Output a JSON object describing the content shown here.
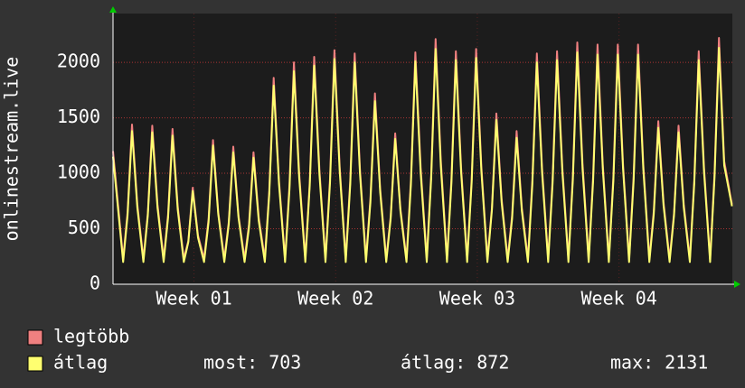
{
  "chart_data": {
    "type": "line",
    "ylabel": "onlinestream.live",
    "x": [
      0,
      0.5,
      0.72,
      0.94,
      1.2,
      1.5,
      1.72,
      1.94,
      2.2,
      2.5,
      2.72,
      2.94,
      3.2,
      3.5,
      3.72,
      3.94,
      4.2,
      4.5,
      4.72,
      4.94,
      5.2,
      5.5,
      5.72,
      5.94,
      6.2,
      6.5,
      6.72,
      6.94,
      7.2,
      7.5,
      7.72,
      7.94,
      8.2,
      8.5,
      8.72,
      8.94,
      9.2,
      9.5,
      9.72,
      9.94,
      10.2,
      10.5,
      10.72,
      10.94,
      11.2,
      11.5,
      11.72,
      11.94,
      12.2,
      12.5,
      12.72,
      12.94,
      13.2,
      13.5,
      13.72,
      13.94,
      14.2,
      14.5,
      14.72,
      14.94,
      15.2,
      15.5,
      15.72,
      15.94,
      16.2,
      16.5,
      16.72,
      16.94,
      17.2,
      17.5,
      17.72,
      17.94,
      18.2,
      18.5,
      18.72,
      18.94,
      19.2,
      19.5,
      19.72,
      19.94,
      20.2,
      20.5,
      20.72,
      20.94,
      21.2,
      21.5,
      21.72,
      21.94,
      22.2,
      22.5,
      22.72,
      22.94,
      23.2,
      23.5,
      23.72,
      23.94,
      24.2,
      24.5,
      24.72,
      24.94,
      25.2,
      25.5,
      25.72,
      25.94,
      26.2,
      26.5,
      26.72,
      26.94,
      27.2,
      27.5,
      27.72,
      27.94,
      28.2,
      28.5,
      28.72,
      28.94,
      29.2,
      29.5,
      29.72,
      29.94,
      30.2,
      30.58
    ],
    "series": [
      {
        "name": "legtöbb",
        "color": "#f08080",
        "values": [
          1200,
          230,
          650,
          1440,
          720,
          230,
          640,
          1430,
          720,
          230,
          630,
          1400,
          700,
          230,
          390,
          870,
          440,
          230,
          590,
          1300,
          650,
          230,
          560,
          1240,
          620,
          230,
          540,
          1190,
          600,
          230,
          840,
          1860,
          930,
          230,
          900,
          2000,
          1000,
          230,
          920,
          2050,
          1030,
          230,
          950,
          2110,
          1060,
          230,
          940,
          2080,
          1040,
          230,
          770,
          1720,
          860,
          230,
          610,
          1360,
          680,
          230,
          940,
          2090,
          1050,
          230,
          990,
          2210,
          1110,
          230,
          950,
          2100,
          1050,
          230,
          950,
          2120,
          1060,
          230,
          690,
          1540,
          770,
          230,
          620,
          1380,
          690,
          230,
          940,
          2080,
          1040,
          230,
          950,
          2100,
          1050,
          230,
          980,
          2180,
          1090,
          230,
          970,
          2160,
          1080,
          230,
          970,
          2160,
          1080,
          230,
          970,
          2160,
          1080,
          230,
          660,
          1470,
          740,
          230,
          640,
          1430,
          720,
          230,
          940,
          2100,
          1050,
          230,
          1000,
          2220,
          1110,
          720
        ]
      },
      {
        "name": "átlag",
        "color": "#ffff70",
        "values": [
          1150,
          200,
          620,
          1380,
          690,
          200,
          620,
          1370,
          690,
          200,
          600,
          1340,
          670,
          200,
          380,
          840,
          420,
          200,
          560,
          1250,
          630,
          200,
          540,
          1190,
          600,
          200,
          510,
          1140,
          570,
          200,
          810,
          1790,
          900,
          200,
          860,
          1920,
          960,
          200,
          890,
          1970,
          990,
          200,
          910,
          2030,
          1020,
          200,
          900,
          2000,
          1000,
          200,
          740,
          1650,
          830,
          200,
          590,
          1310,
          660,
          200,
          900,
          2010,
          1000,
          200,
          950,
          2120,
          1060,
          200,
          910,
          2020,
          1010,
          200,
          920,
          2040,
          1020,
          200,
          670,
          1480,
          740,
          200,
          590,
          1320,
          660,
          200,
          900,
          2000,
          1000,
          200,
          910,
          2020,
          1010,
          200,
          940,
          2090,
          1040,
          200,
          930,
          2070,
          1040,
          200,
          930,
          2070,
          1040,
          200,
          930,
          2070,
          1040,
          200,
          630,
          1410,
          710,
          200,
          620,
          1370,
          690,
          200,
          910,
          2020,
          1010,
          200,
          960,
          2131,
          1070,
          703
        ]
      }
    ],
    "xlim": [
      0,
      30.6
    ],
    "xticks": [
      {
        "value": 4,
        "label": "Week 01"
      },
      {
        "value": 11,
        "label": "Week 02"
      },
      {
        "value": 18,
        "label": "Week 03"
      },
      {
        "value": 25,
        "label": "Week 04"
      }
    ],
    "ylim": [
      0,
      2440
    ],
    "yticks": [
      0,
      500,
      1000,
      1500,
      2000
    ],
    "grid": true,
    "stats": [
      {
        "label": "most:",
        "value": 703
      },
      {
        "label": "átlag:",
        "value": 872
      },
      {
        "label": "max:",
        "value": 2131
      }
    ]
  }
}
